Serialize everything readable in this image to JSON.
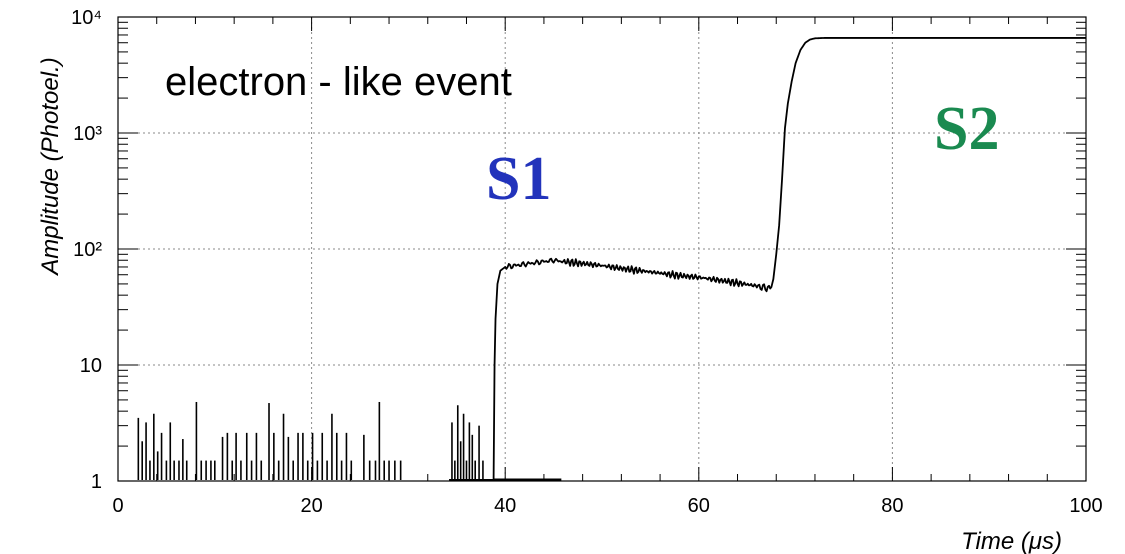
{
  "chart_data": {
    "type": "line",
    "title": "",
    "xlabel": "Time (μs)",
    "ylabel": "Amplitude (Photoel.)",
    "xlim": [
      0,
      100
    ],
    "ylim": [
      1,
      10000
    ],
    "yscale": "log",
    "grid": true,
    "x_ticks": [
      0,
      20,
      40,
      60,
      80,
      100
    ],
    "x_tick_labels": [
      "0",
      "20",
      "40",
      "60",
      "80",
      "100"
    ],
    "y_ticks": [
      1,
      10,
      100,
      1000,
      10000
    ],
    "y_tick_labels": [
      "1",
      "10",
      "10²",
      "10³",
      "10⁴"
    ],
    "annotations": [
      {
        "text": "electron - like event",
        "color": "#000000"
      },
      {
        "text": "S1",
        "color": "#2233bb"
      },
      {
        "text": "S2",
        "color": "#1a8a50"
      }
    ],
    "series": [
      {
        "line_color": "#000000",
        "noise_spikes": [
          [
            2.1,
            3.5
          ],
          [
            2.5,
            2.2
          ],
          [
            2.9,
            3.2
          ],
          [
            3.3,
            1.5
          ],
          [
            3.7,
            3.8
          ],
          [
            4.1,
            1.8
          ],
          [
            4.5,
            2.6
          ],
          [
            5.0,
            1.5
          ],
          [
            5.4,
            3.2
          ],
          [
            5.8,
            1.5
          ],
          [
            6.3,
            1.5
          ],
          [
            6.7,
            2.3
          ],
          [
            7.1,
            1.5
          ],
          [
            8.1,
            4.8
          ],
          [
            8.6,
            1.5
          ],
          [
            9.1,
            1.5
          ],
          [
            9.6,
            1.5
          ],
          [
            10.0,
            1.5
          ],
          [
            10.8,
            2.4
          ],
          [
            11.3,
            2.6
          ],
          [
            11.8,
            1.5
          ],
          [
            12.2,
            2.6
          ],
          [
            12.7,
            1.5
          ],
          [
            13.3,
            2.6
          ],
          [
            13.8,
            1.5
          ],
          [
            14.3,
            2.6
          ],
          [
            14.8,
            1.5
          ],
          [
            15.6,
            4.7
          ],
          [
            16.1,
            2.6
          ],
          [
            16.6,
            1.5
          ],
          [
            17.1,
            3.8
          ],
          [
            17.6,
            2.4
          ],
          [
            18.1,
            1.5
          ],
          [
            18.6,
            2.6
          ],
          [
            19.1,
            2.6
          ],
          [
            19.6,
            1.5
          ],
          [
            20.1,
            2.6
          ],
          [
            20.6,
            1.5
          ],
          [
            21.1,
            2.6
          ],
          [
            21.6,
            1.5
          ],
          [
            22.1,
            3.8
          ],
          [
            22.6,
            2.6
          ],
          [
            23.1,
            1.5
          ],
          [
            23.6,
            2.6
          ],
          [
            24.1,
            1.5
          ],
          [
            25.4,
            2.5
          ],
          [
            26.0,
            1.5
          ],
          [
            26.6,
            1.5
          ],
          [
            27.0,
            4.8
          ],
          [
            27.5,
            1.5
          ],
          [
            28.0,
            1.5
          ],
          [
            28.6,
            1.5
          ],
          [
            29.2,
            1.5
          ],
          [
            34.5,
            3.2
          ],
          [
            34.8,
            1.5
          ],
          [
            35.1,
            4.5
          ],
          [
            35.4,
            2.2
          ],
          [
            35.7,
            3.8
          ],
          [
            36.0,
            1.5
          ],
          [
            36.3,
            3.2
          ],
          [
            36.6,
            2.5
          ],
          [
            36.9,
            1.5
          ],
          [
            37.3,
            3.0
          ],
          [
            37.7,
            1.5
          ]
        ],
        "points": [
          [
            38.8,
            1
          ],
          [
            38.9,
            10
          ],
          [
            39.0,
            25
          ],
          [
            39.2,
            50
          ],
          [
            39.5,
            65
          ],
          [
            40.0,
            70
          ],
          [
            41.0,
            72
          ],
          [
            42.0,
            74
          ],
          [
            43.0,
            76
          ],
          [
            44.0,
            78
          ],
          [
            45.0,
            80
          ],
          [
            46.0,
            78
          ],
          [
            48.0,
            75
          ],
          [
            50.0,
            72
          ],
          [
            52.0,
            68
          ],
          [
            54.0,
            65
          ],
          [
            56.0,
            62
          ],
          [
            58.0,
            59
          ],
          [
            60.0,
            57
          ],
          [
            62.0,
            54
          ],
          [
            64.0,
            51
          ],
          [
            66.0,
            48
          ],
          [
            67.0,
            46
          ],
          [
            67.5,
            47
          ],
          [
            67.7,
            55
          ],
          [
            68.0,
            90
          ],
          [
            68.3,
            160
          ],
          [
            68.6,
            400
          ],
          [
            68.9,
            1100
          ],
          [
            69.2,
            1800
          ],
          [
            69.6,
            2800
          ],
          [
            70.0,
            4000
          ],
          [
            70.5,
            5200
          ],
          [
            71.0,
            6000
          ],
          [
            71.5,
            6400
          ],
          [
            72.0,
            6550
          ],
          [
            73.0,
            6600
          ],
          [
            80.0,
            6600
          ],
          [
            90.0,
            6600
          ],
          [
            100.0,
            6600
          ]
        ]
      }
    ]
  }
}
